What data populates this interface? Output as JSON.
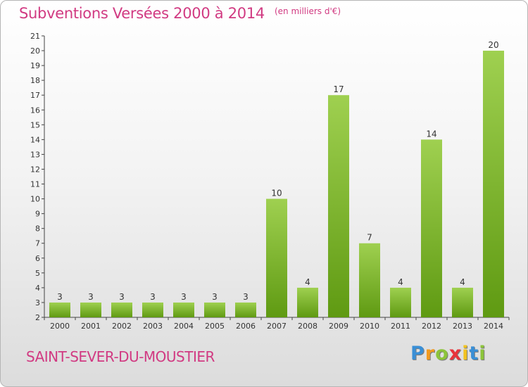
{
  "title": "Subventions Versées 2000 à 2014",
  "subtitle": "(en milliers d'€)",
  "commune": "SAINT-SEVER-DU-MOUSTIER",
  "logo": {
    "letters": [
      {
        "ch": "P",
        "color": "#3a8fd6"
      },
      {
        "ch": "r",
        "color": "#f29a1f"
      },
      {
        "ch": "o",
        "color": "#8cc43a"
      },
      {
        "ch": "x",
        "color": "#e8333a"
      },
      {
        "ch": "i",
        "color": "#f2c21f"
      },
      {
        "ch": "t",
        "color": "#3a8fd6"
      },
      {
        "ch": "i",
        "color": "#8cc43a"
      }
    ]
  },
  "colors": {
    "bar_light": "#9fd050",
    "bar_dark": "#5f9a12",
    "title": "#d13a82"
  },
  "chart_data": {
    "type": "bar",
    "categories": [
      "2000",
      "2001",
      "2002",
      "2003",
      "2004",
      "2005",
      "2006",
      "2007",
      "2008",
      "2009",
      "2010",
      "2011",
      "2012",
      "2013",
      "2014"
    ],
    "values": [
      3,
      3,
      3,
      3,
      3,
      3,
      3,
      10,
      4,
      17,
      7,
      4,
      14,
      4,
      20
    ],
    "ylim": [
      2,
      21
    ],
    "yticks": [
      2,
      3,
      4,
      5,
      6,
      7,
      8,
      9,
      10,
      11,
      12,
      13,
      14,
      15,
      16,
      17,
      18,
      19,
      20,
      21
    ],
    "grid": false
  }
}
